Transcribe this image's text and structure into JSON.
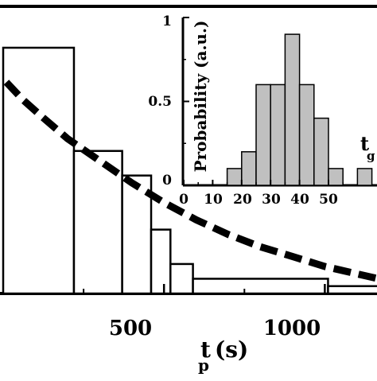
{
  "chart_data": [
    {
      "type": "bar",
      "role": "main",
      "bins": [
        {
          "x0": 0,
          "x1": 220,
          "value": 1.0
        },
        {
          "x0": 220,
          "x1": 370,
          "value": 0.58
        },
        {
          "x0": 370,
          "x1": 460,
          "value": 0.48
        },
        {
          "x0": 460,
          "x1": 520,
          "value": 0.26
        },
        {
          "x0": 520,
          "x1": 590,
          "value": 0.12
        },
        {
          "x0": 590,
          "x1": 1010,
          "value": 0.06
        },
        {
          "x0": 1010,
          "x1": 1300,
          "value": 0.03
        }
      ],
      "fit_curve": {
        "style": "dashed",
        "x": [
          10,
          60,
          120,
          200,
          300,
          400,
          500,
          600,
          700,
          800,
          900,
          1000,
          1100,
          1200,
          1300
        ],
        "y": [
          0.86,
          0.79,
          0.72,
          0.63,
          0.54,
          0.45,
          0.37,
          0.3,
          0.24,
          0.19,
          0.15,
          0.11,
          0.08,
          0.05,
          0.02
        ]
      },
      "xlim": [
        -20,
        1300
      ],
      "ylim": [
        0,
        1.12
      ],
      "xticks": [
        "500",
        "1000"
      ],
      "xtick_values": [
        500,
        1000
      ],
      "xlabel_main": "t",
      "xlabel_sub": "p",
      "xlabel_unit": "(s)"
    },
    {
      "type": "bar",
      "role": "inset",
      "bins": [
        {
          "x0": 10,
          "x1": 15,
          "value": 0.0
        },
        {
          "x0": 15,
          "x1": 20,
          "value": 0.1
        },
        {
          "x0": 20,
          "x1": 25,
          "value": 0.2
        },
        {
          "x0": 25,
          "x1": 30,
          "value": 0.6
        },
        {
          "x0": 30,
          "x1": 35,
          "value": 0.6
        },
        {
          "x0": 35,
          "x1": 40,
          "value": 0.9
        },
        {
          "x0": 40,
          "x1": 45,
          "value": 0.6
        },
        {
          "x0": 45,
          "x1": 50,
          "value": 0.4
        },
        {
          "x0": 50,
          "x1": 55,
          "value": 0.1
        },
        {
          "x0": 55,
          "x1": 60,
          "value": 0.0
        },
        {
          "x0": 60,
          "x1": 65,
          "value": 0.1
        }
      ],
      "fill_color": "#c0c0c0",
      "xlim": [
        0,
        60
      ],
      "ylim": [
        0,
        1
      ],
      "xticks": [
        "0",
        "10",
        "20",
        "30",
        "40",
        "50"
      ],
      "xtick_values": [
        0,
        10,
        20,
        30,
        40,
        50
      ],
      "yticks": [
        "0",
        "0.5",
        "1"
      ],
      "ytick_values": [
        0,
        0.5,
        1
      ],
      "ylabel": "Probability (a.u.)",
      "xlabel_main": "t",
      "xlabel_sub": "g"
    }
  ]
}
